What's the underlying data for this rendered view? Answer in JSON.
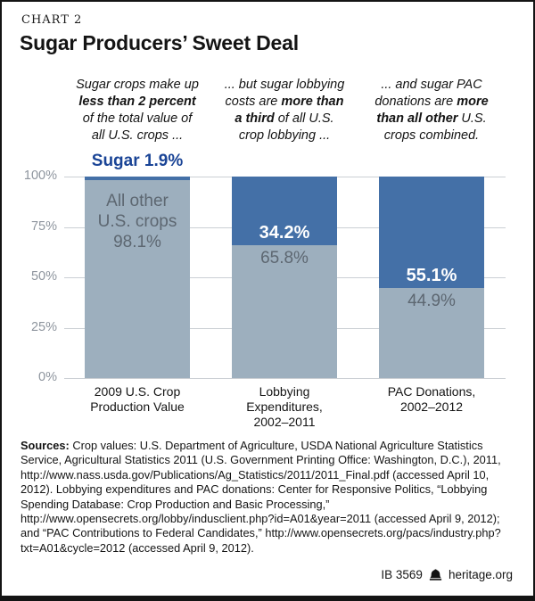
{
  "header": {
    "kicker": "CHART 2",
    "title": "Sugar Producers’ Sweet Deal"
  },
  "annotations": [
    {
      "lines": [
        [
          {
            "t": "Sugar crops make up",
            "b": false
          }
        ],
        [
          {
            "t": "less than 2 percent",
            "b": true
          }
        ],
        [
          {
            "t": "of the total value of",
            "b": false
          }
        ],
        [
          {
            "t": "all U.S. crops ...",
            "b": false
          }
        ]
      ]
    },
    {
      "lines": [
        [
          {
            "t": "... but sugar lobbying",
            "b": false
          }
        ],
        [
          {
            "t": "costs are ",
            "b": false
          },
          {
            "t": "more than",
            "b": true
          }
        ],
        [
          {
            "t": "a third",
            "b": true
          },
          {
            "t": " of all U.S.",
            "b": false
          }
        ],
        [
          {
            "t": "crop lobbying ...",
            "b": false
          }
        ]
      ]
    },
    {
      "lines": [
        [
          {
            "t": "... and sugar PAC",
            "b": false
          }
        ],
        [
          {
            "t": "donations are ",
            "b": false
          },
          {
            "t": "more",
            "b": true
          }
        ],
        [
          {
            "t": "than all other",
            "b": true
          },
          {
            "t": " U.S.",
            "b": false
          }
        ],
        [
          {
            "t": "crops combined.",
            "b": false
          }
        ]
      ]
    }
  ],
  "chart_data": {
    "type": "bar",
    "stacked": true,
    "title": "Sugar Producers’ Sweet Deal",
    "ylabel": "",
    "xlabel": "",
    "ylim": [
      0,
      100
    ],
    "grid": true,
    "yticks": [
      {
        "value": 100,
        "label": "100%"
      },
      {
        "value": 75,
        "label": "75%"
      },
      {
        "value": 50,
        "label": "50%"
      },
      {
        "value": 25,
        "label": "25%"
      },
      {
        "value": 0,
        "label": "0%"
      }
    ],
    "categories": [
      "2009 U.S. Crop Production Value",
      "Lobbying Expenditures, 2002–2011",
      "PAC Donations, 2002–2012"
    ],
    "series": [
      {
        "name": "Sugar",
        "values": [
          1.9,
          34.2,
          55.1
        ]
      },
      {
        "name": "All other U.S. crops",
        "values": [
          98.1,
          65.8,
          44.9
        ]
      }
    ],
    "bars": [
      {
        "category_lines": [
          "2009 U.S. Crop",
          "Production Value"
        ],
        "sugar_pct": 1.9,
        "other_pct": 98.1,
        "sugar_label": "Sugar 1.9%",
        "sugar_label_position": "above",
        "other_label_lines": [
          "All other",
          "U.S. crops",
          "98.1%"
        ]
      },
      {
        "category_lines": [
          "Lobbying",
          "Expenditures,",
          "2002–2011"
        ],
        "sugar_pct": 34.2,
        "other_pct": 65.8,
        "sugar_label": "34.2%",
        "sugar_label_position": "inside",
        "other_label_lines": [
          "65.8%"
        ]
      },
      {
        "category_lines": [
          "PAC Donations,",
          "2002–2012"
        ],
        "sugar_pct": 55.1,
        "other_pct": 44.9,
        "sugar_label": "55.1%",
        "sugar_label_position": "inside",
        "other_label_lines": [
          "44.9%"
        ]
      }
    ],
    "colors": {
      "sugar": "#4470a7",
      "other": "#9dafbe",
      "callout_text": "#1a4496",
      "inbar_gray_text": "#5d6771",
      "gridline": "#cbcfd4",
      "ytick_text": "#8e959e"
    },
    "legend": "none"
  },
  "sources": {
    "label": "Sources:",
    "text": "Crop values: U.S. Department of Agriculture, USDA National Agriculture Statistics Service, Agricultural Statistics 2011 (U.S. Government Printing Office: Washington, D.C.), 2011, http://www.nass.usda.gov/Publications/Ag_Statistics/2011/2011_Final.pdf (accessed April 10, 2012). Lobbying expenditures and PAC donations: Center for Responsive Politics, “Lobbying Spending Database: Crop Production and Basic Processing,” http://www.opensecrets.org/lobby/indusclient.php?id=A01&year=2011 (accessed April 9, 2012); and “PAC Contributions to Federal Candidates,” http://www.opensecrets.org/pacs/industry.php?txt=A01&cycle=2012 (accessed April 9, 2012)."
  },
  "footer": {
    "id": "IB 3569",
    "site": "heritage.org",
    "logo_icon": "heritage-bell-icon"
  }
}
